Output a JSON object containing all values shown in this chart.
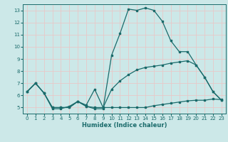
{
  "xlabel": "Humidex (Indice chaleur)",
  "xlim": [
    -0.5,
    23.5
  ],
  "ylim": [
    4.5,
    13.5
  ],
  "yticks": [
    5,
    6,
    7,
    8,
    9,
    10,
    11,
    12,
    13
  ],
  "xticks": [
    0,
    1,
    2,
    3,
    4,
    5,
    6,
    7,
    8,
    9,
    10,
    11,
    12,
    13,
    14,
    15,
    16,
    17,
    18,
    19,
    20,
    21,
    22,
    23
  ],
  "bg_color": "#cce8e8",
  "line_color": "#1a6b6b",
  "grid_color": "#e8c8c8",
  "curve1_x": [
    0,
    1,
    2,
    3,
    4,
    5,
    6,
    7,
    8,
    9,
    10,
    11,
    12,
    13,
    14,
    15,
    16,
    17,
    18,
    19,
    20,
    21,
    22,
    23
  ],
  "curve1_y": [
    6.3,
    7.0,
    6.2,
    4.9,
    4.9,
    5.1,
    5.5,
    5.1,
    4.9,
    4.9,
    9.3,
    11.1,
    13.1,
    13.0,
    13.2,
    13.0,
    12.1,
    10.5,
    9.6,
    9.6,
    8.5,
    7.5,
    6.3,
    5.6
  ],
  "curve2_x": [
    0,
    1,
    2,
    3,
    4,
    5,
    6,
    7,
    8,
    9,
    10,
    11,
    12,
    13,
    14,
    15,
    16,
    17,
    18,
    19,
    20,
    21,
    22,
    23
  ],
  "curve2_y": [
    6.3,
    7.0,
    6.2,
    5.0,
    5.0,
    5.0,
    5.5,
    5.2,
    6.5,
    5.0,
    6.5,
    7.2,
    7.7,
    8.1,
    8.3,
    8.4,
    8.5,
    8.65,
    8.75,
    8.85,
    8.5,
    7.5,
    6.3,
    5.6
  ],
  "curve3_x": [
    0,
    1,
    2,
    3,
    4,
    5,
    6,
    7,
    8,
    9,
    10,
    11,
    12,
    13,
    14,
    15,
    16,
    17,
    18,
    19,
    20,
    21,
    22,
    23
  ],
  "curve3_y": [
    6.3,
    7.0,
    6.2,
    5.0,
    5.0,
    5.0,
    5.5,
    5.1,
    5.0,
    5.0,
    5.0,
    5.0,
    5.0,
    5.0,
    5.0,
    5.15,
    5.25,
    5.35,
    5.45,
    5.55,
    5.6,
    5.6,
    5.7,
    5.65
  ]
}
